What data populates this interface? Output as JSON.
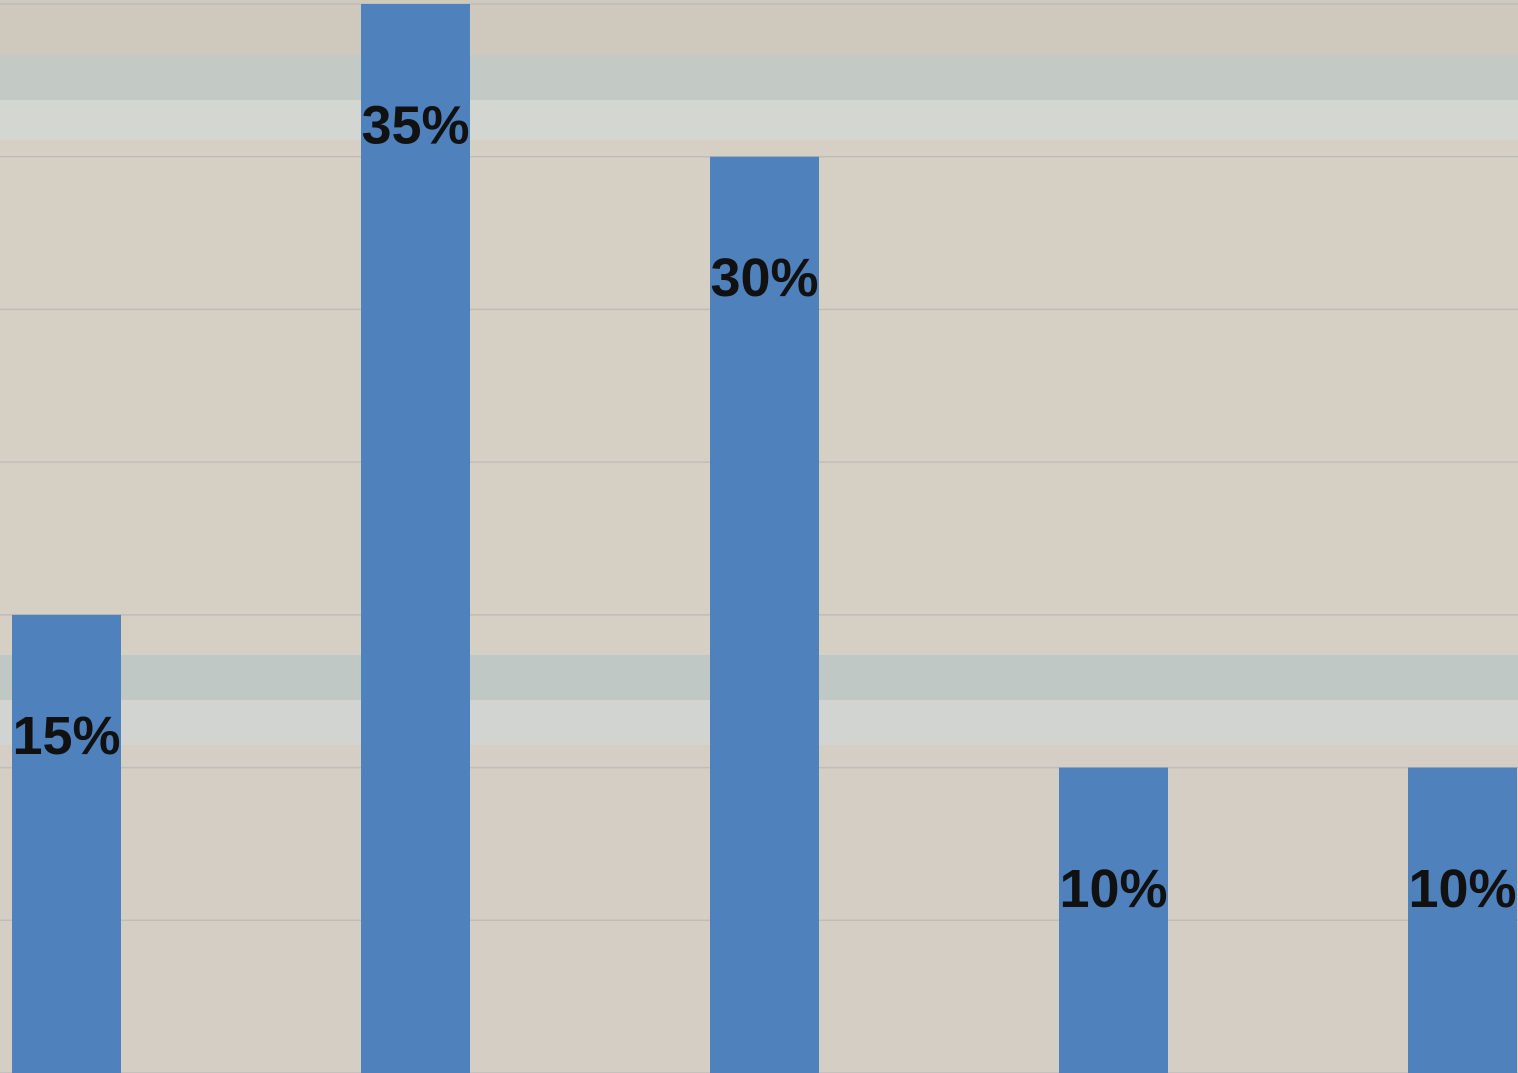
{
  "chart_data": {
    "type": "bar",
    "categories": [
      null,
      null,
      null,
      null,
      null
    ],
    "values": [
      15,
      35,
      30,
      10,
      10
    ],
    "value_labels": [
      "15%",
      "35%",
      "30%",
      "10%",
      "10%"
    ],
    "color": "#4f81bd",
    "ylim": [
      0,
      35
    ],
    "yticks": [
      0,
      5,
      10,
      15,
      20,
      25,
      30,
      35
    ],
    "grid": true
  }
}
